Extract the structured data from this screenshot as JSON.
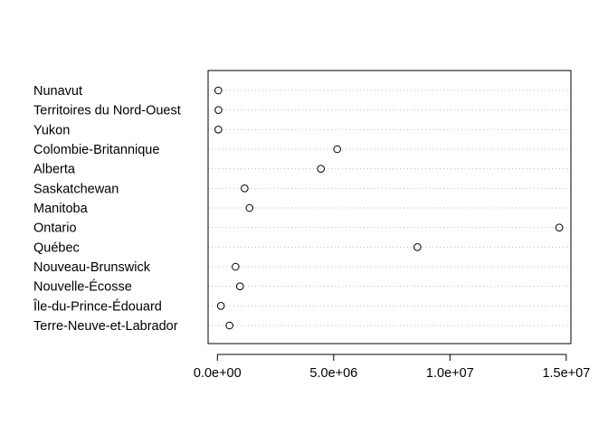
{
  "chart_data": {
    "type": "scatter",
    "style": "dotchart",
    "title": "",
    "xlabel": "",
    "ylabel": "",
    "xlim": [
      -400000,
      15200000
    ],
    "x_ticks": [
      0,
      5000000,
      10000000,
      15000000
    ],
    "x_tick_labels": [
      "0.0e+00",
      "5.0e+06",
      "1.0e+07",
      "1.5e+07"
    ],
    "grid": "dotted horizontal guide lines",
    "marker": "open-circle",
    "categories": [
      "Terre-Neuve-et-Labrador",
      "Île-du-Prince-Édouard",
      "Nouvelle-Écosse",
      "Nouveau-Brunswick",
      "Québec",
      "Ontario",
      "Manitoba",
      "Saskatchewan",
      "Alberta",
      "Colombie-Britannique",
      "Yukon",
      "Territoires du Nord-Ouest",
      "Nunavut"
    ],
    "values": [
      520000,
      150000,
      970000,
      780000,
      8600000,
      14700000,
      1380000,
      1170000,
      4450000,
      5150000,
      40000,
      45000,
      38000
    ]
  }
}
